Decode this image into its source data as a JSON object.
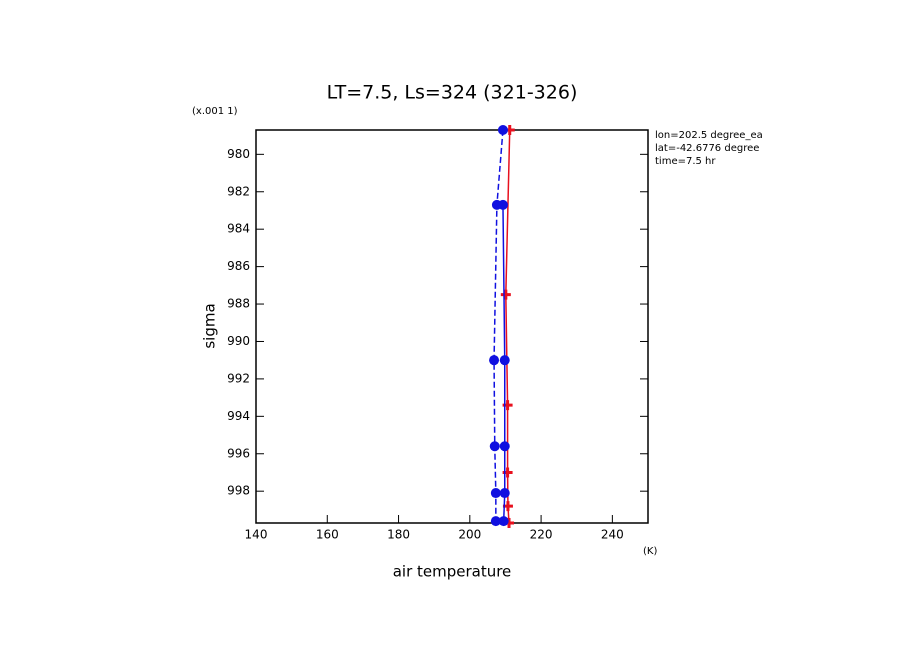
{
  "chart_data": {
    "type": "line",
    "title": "LT=7.5, Ls=324 (321-326)",
    "x_label": "air temperature",
    "x_unit": "(K)",
    "y_label": "sigma",
    "y_unit": "(x.001 1)",
    "annotations": [
      "lon=202.5 degree_ea",
      "lat=-42.6776 degree",
      "time=7.5 hr"
    ],
    "xlim": [
      140,
      250
    ],
    "xticks": [
      140,
      160,
      180,
      200,
      220,
      240
    ],
    "ylim": [
      978.7,
      999.7
    ],
    "yticks": [
      980,
      982,
      984,
      986,
      988,
      990,
      992,
      994,
      996,
      998
    ],
    "y_inverted": true,
    "series": [
      {
        "color": "#e8101e",
        "marker": "plus",
        "dash": false,
        "sigma": [
          978.7,
          987.5,
          993.4,
          997.0,
          998.8,
          999.7
        ],
        "values": [
          211.2,
          210.1,
          210.6,
          210.6,
          210.7,
          211.0
        ]
      },
      {
        "color": "#1010e0",
        "marker": "circle",
        "dash": false,
        "sigma": [
          982.7,
          991.0,
          995.6,
          998.1,
          999.6
        ],
        "values": [
          209.3,
          209.8,
          209.8,
          209.8,
          209.5
        ]
      },
      {
        "color": "#1010e0",
        "marker": "circle",
        "dash": true,
        "sigma": [
          978.7,
          982.7,
          991.0,
          995.6,
          998.1,
          999.6
        ],
        "values": [
          209.3,
          207.6,
          206.8,
          207.0,
          207.3,
          207.3
        ]
      }
    ]
  }
}
